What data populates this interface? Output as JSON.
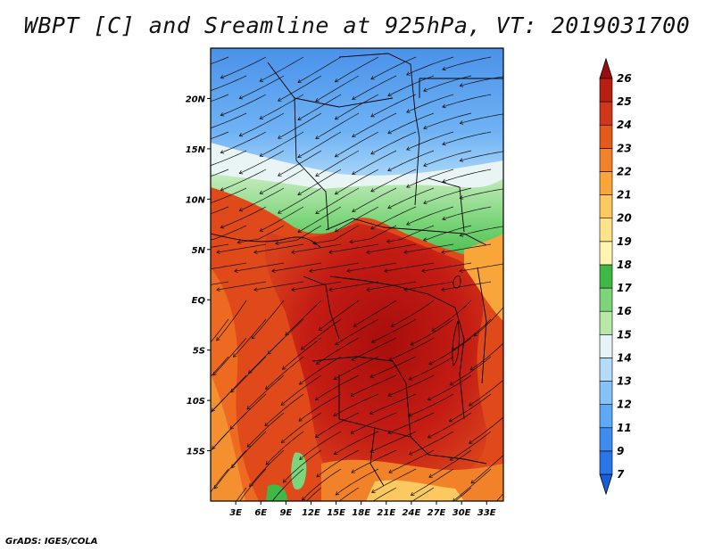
{
  "title": "WBPT [C] and Sreamline at 925hPa, VT: 2019031700",
  "credit": "GrADS: IGES/COLA",
  "map": {
    "lon_range": [
      0,
      35
    ],
    "lat_range": [
      -20,
      25
    ],
    "lon_ticks": [
      "3E",
      "6E",
      "9E",
      "12E",
      "15E",
      "18E",
      "21E",
      "24E",
      "27E",
      "30E",
      "33E"
    ],
    "lon_tick_values": [
      3,
      6,
      9,
      12,
      15,
      18,
      21,
      24,
      27,
      30,
      33
    ],
    "lat_ticks": [
      "20N",
      "15N",
      "10N",
      "5N",
      "EQ",
      "5S",
      "10S",
      "15S"
    ],
    "lat_tick_values": [
      20,
      15,
      10,
      5,
      0,
      -5,
      -10,
      -15
    ]
  },
  "colorbar": {
    "levels": [
      "7",
      "9",
      "11",
      "12",
      "13",
      "14",
      "15",
      "16",
      "17",
      "18",
      "19",
      "20",
      "21",
      "22",
      "23",
      "24",
      "25",
      "26"
    ],
    "colors": [
      "#1560d8",
      "#2a75e8",
      "#3f8cf0",
      "#5ea8f5",
      "#86c2f7",
      "#b4dcf9",
      "#e6f4f8",
      "#b8e8a8",
      "#7cd57a",
      "#3fb845",
      "#fff4b0",
      "#fde48a",
      "#fcc860",
      "#f8a63a",
      "#f2822a",
      "#e45a18",
      "#d0361a",
      "#b81e12",
      "#9c0c0c"
    ]
  },
  "field_colors": {
    "north_cool": "#5ea8f5",
    "north_mid": "#86c2f7",
    "transition_green": "#7cd57a",
    "core_red": "#c81e14",
    "west_orange": "#f0701f",
    "south_orange": "#f8a63a"
  }
}
